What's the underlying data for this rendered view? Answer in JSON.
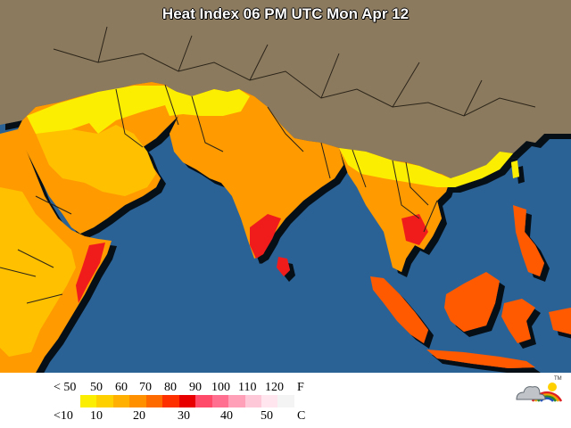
{
  "title": "Heat Index 06 PM UTC Mon Apr 12",
  "colors": {
    "ocean": "#2b6296",
    "land": "#8c7a5f",
    "border": "#2a2418",
    "heat_50_60": "#fcee00",
    "heat_60_70": "#ffc000",
    "heat_70_80": "#ff9a00",
    "heat_80_90": "#ff5a00",
    "heat_90_100": "#f01e1e"
  },
  "legend": {
    "fahrenheit_labels": [
      "< 50",
      "50",
      "60",
      "70",
      "80",
      "90",
      "100",
      "110",
      "120"
    ],
    "fahrenheit_unit": "F",
    "celsius_labels": [
      "<10",
      "10",
      "20",
      "30",
      "40",
      "50"
    ],
    "celsius_unit": "C",
    "bands": [
      "#fcee00",
      "#ffd000",
      "#ffb000",
      "#ff9000",
      "#ff6a00",
      "#ff3000",
      "#e80000",
      "#ff4a6a",
      "#ff7090",
      "#ffa0b8",
      "#ffc8d8",
      "#ffe6ee",
      "#f4f4f4"
    ]
  },
  "logo": {
    "icon": "cloud-sun-rainbow-logo",
    "trademark": "TM"
  }
}
